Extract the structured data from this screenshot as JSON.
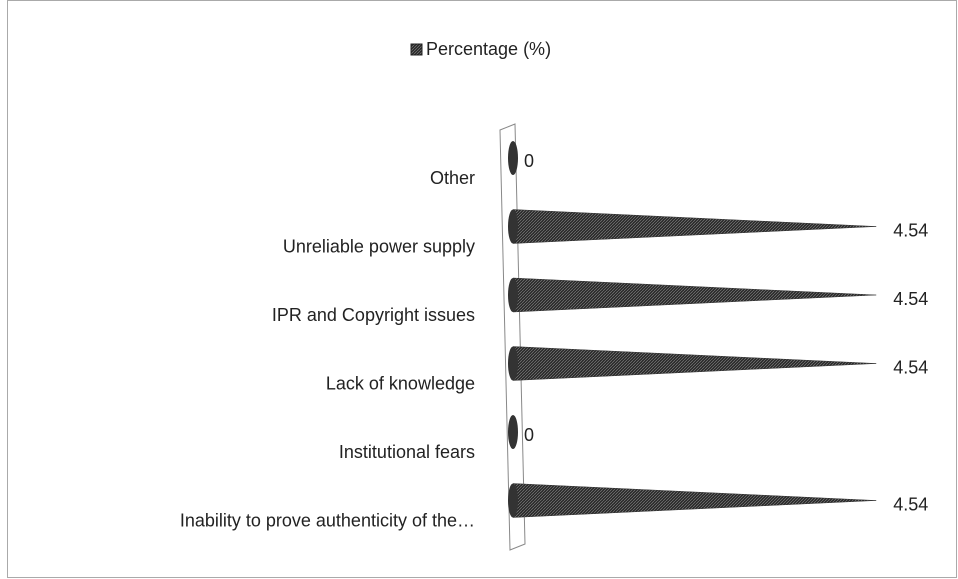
{
  "chart_data": {
    "type": "cone-bar",
    "legend": "Percentage (%)",
    "categories": [
      "Other",
      "Unreliable power supply",
      "IPR and Copyright issues",
      "Lack of knowledge",
      "Institutional fears",
      "Inability to prove authenticity of the…"
    ],
    "series": [
      {
        "name": "Percentage (%)",
        "color": "#333333",
        "values": [
          0,
          4.54,
          4.54,
          4.54,
          0,
          4.54
        ]
      }
    ],
    "xlim": [
      0,
      5
    ]
  }
}
